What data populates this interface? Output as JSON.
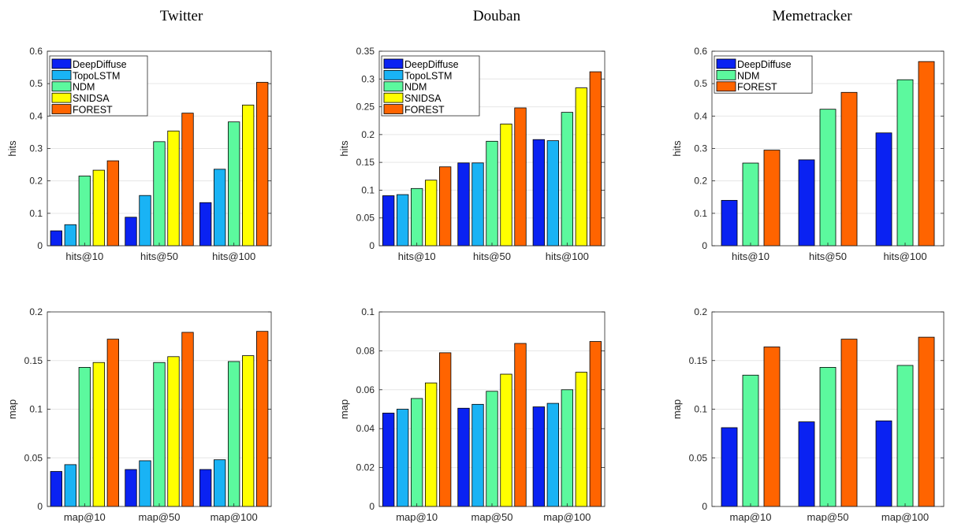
{
  "titles": [
    "Twitter",
    "Douban",
    "Memetracker"
  ],
  "colors": {
    "DeepDiffuse": "#0a22f2",
    "TopoLSTM": "#19b3f5",
    "NDM": "#5cf99e",
    "SNIDSA": "#ffff00",
    "FOREST": "#ff6400"
  },
  "chart_data": [
    {
      "type": "bar",
      "title": "Twitter",
      "ylabel": "hits",
      "categories": [
        "hits@10",
        "hits@50",
        "hits@100"
      ],
      "ylim": [
        0,
        0.6
      ],
      "yticks": [
        0,
        0.1,
        0.2,
        0.3,
        0.4,
        0.5,
        0.6
      ],
      "ytick_labels": [
        "0",
        "0.1",
        "0.2",
        "0.3",
        "0.4",
        "0.5",
        "0.6"
      ],
      "legend": "top-left",
      "grid": "y",
      "series": [
        {
          "name": "DeepDiffuse",
          "values": [
            0.046,
            0.088,
            0.133
          ]
        },
        {
          "name": "TopoLSTM",
          "values": [
            0.065,
            0.155,
            0.236
          ]
        },
        {
          "name": "NDM",
          "values": [
            0.215,
            0.321,
            0.382
          ]
        },
        {
          "name": "SNIDSA",
          "values": [
            0.233,
            0.354,
            0.434
          ]
        },
        {
          "name": "FOREST",
          "values": [
            0.262,
            0.409,
            0.504
          ]
        }
      ]
    },
    {
      "type": "bar",
      "title": "Douban",
      "ylabel": "hits",
      "categories": [
        "hits@10",
        "hits@50",
        "hits@100"
      ],
      "ylim": [
        0,
        0.35
      ],
      "yticks": [
        0,
        0.05,
        0.1,
        0.15,
        0.2,
        0.25,
        0.3,
        0.35
      ],
      "ytick_labels": [
        "0",
        "0.05",
        "0.1",
        "0.15",
        "0.2",
        "0.25",
        "0.3",
        "0.35"
      ],
      "legend": "top-left",
      "grid": "y",
      "series": [
        {
          "name": "DeepDiffuse",
          "values": [
            0.09,
            0.149,
            0.191
          ]
        },
        {
          "name": "TopoLSTM",
          "values": [
            0.092,
            0.149,
            0.189
          ]
        },
        {
          "name": "NDM",
          "values": [
            0.103,
            0.188,
            0.24
          ]
        },
        {
          "name": "SNIDSA",
          "values": [
            0.118,
            0.219,
            0.284
          ]
        },
        {
          "name": "FOREST",
          "values": [
            0.142,
            0.248,
            0.313
          ]
        }
      ]
    },
    {
      "type": "bar",
      "title": "Memetracker",
      "ylabel": "hits",
      "categories": [
        "hits@10",
        "hits@50",
        "hits@100"
      ],
      "ylim": [
        0,
        0.6
      ],
      "yticks": [
        0,
        0.1,
        0.2,
        0.3,
        0.4,
        0.5,
        0.6
      ],
      "ytick_labels": [
        "0",
        "0.1",
        "0.2",
        "0.3",
        "0.4",
        "0.5",
        "0.6"
      ],
      "legend": "top-left",
      "grid": "y",
      "series": [
        {
          "name": "DeepDiffuse",
          "values": [
            0.14,
            0.265,
            0.348
          ]
        },
        {
          "name": "NDM",
          "values": [
            0.255,
            0.421,
            0.512
          ]
        },
        {
          "name": "FOREST",
          "values": [
            0.295,
            0.473,
            0.568
          ]
        }
      ]
    },
    {
      "type": "bar",
      "title": "",
      "ylabel": "map",
      "categories": [
        "map@10",
        "map@50",
        "map@100"
      ],
      "ylim": [
        0,
        0.2
      ],
      "yticks": [
        0,
        0.05,
        0.1,
        0.15,
        0.2
      ],
      "ytick_labels": [
        "0",
        "0.05",
        "0.1",
        "0.15",
        "0.2"
      ],
      "legend": "",
      "grid": "y",
      "series": [
        {
          "name": "DeepDiffuse",
          "values": [
            0.036,
            0.038,
            0.038
          ]
        },
        {
          "name": "TopoLSTM",
          "values": [
            0.043,
            0.047,
            0.048
          ]
        },
        {
          "name": "NDM",
          "values": [
            0.143,
            0.148,
            0.149
          ]
        },
        {
          "name": "SNIDSA",
          "values": [
            0.148,
            0.154,
            0.155
          ]
        },
        {
          "name": "FOREST",
          "values": [
            0.172,
            0.179,
            0.18
          ]
        }
      ]
    },
    {
      "type": "bar",
      "title": "",
      "ylabel": "map",
      "categories": [
        "map@10",
        "map@50",
        "map@100"
      ],
      "ylim": [
        0,
        0.1
      ],
      "yticks": [
        0,
        0.02,
        0.04,
        0.06,
        0.08,
        0.1
      ],
      "ytick_labels": [
        "0",
        "0.02",
        "0.04",
        "0.06",
        "0.08",
        "0.1"
      ],
      "legend": "",
      "grid": "y",
      "series": [
        {
          "name": "DeepDiffuse",
          "values": [
            0.048,
            0.0505,
            0.0512
          ]
        },
        {
          "name": "TopoLSTM",
          "values": [
            0.05,
            0.0525,
            0.053
          ]
        },
        {
          "name": "NDM",
          "values": [
            0.0555,
            0.0592,
            0.06
          ]
        },
        {
          "name": "SNIDSA",
          "values": [
            0.0635,
            0.068,
            0.069
          ]
        },
        {
          "name": "FOREST",
          "values": [
            0.079,
            0.0838,
            0.0848
          ]
        }
      ]
    },
    {
      "type": "bar",
      "title": "",
      "ylabel": "map",
      "categories": [
        "map@10",
        "map@50",
        "map@100"
      ],
      "ylim": [
        0,
        0.2
      ],
      "yticks": [
        0,
        0.05,
        0.1,
        0.15,
        0.2
      ],
      "ytick_labels": [
        "0",
        "0.05",
        "0.1",
        "0.15",
        "0.2"
      ],
      "legend": "",
      "grid": "y",
      "series": [
        {
          "name": "DeepDiffuse",
          "values": [
            0.081,
            0.087,
            0.088
          ]
        },
        {
          "name": "NDM",
          "values": [
            0.135,
            0.143,
            0.145
          ]
        },
        {
          "name": "FOREST",
          "values": [
            0.164,
            0.172,
            0.174
          ]
        }
      ]
    }
  ]
}
